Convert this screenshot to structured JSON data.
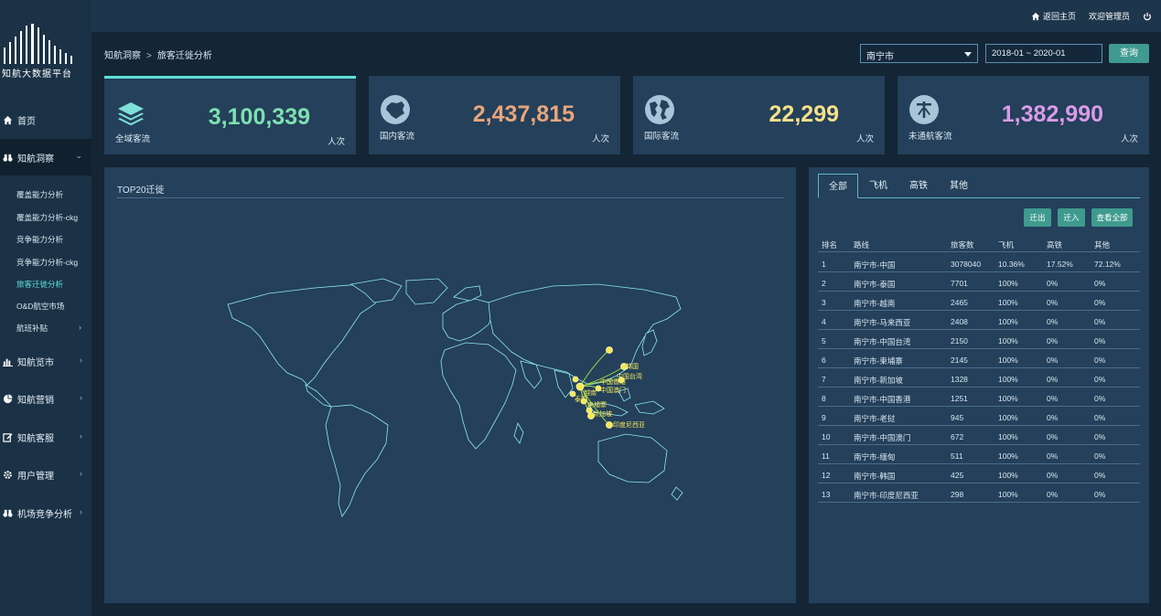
{
  "app": {
    "logo_text": "知航大数据平台"
  },
  "sidebar": {
    "items": [
      {
        "label": "首页",
        "icon": "home-icon"
      },
      {
        "label": "知航洞察",
        "icon": "binoculars-icon"
      },
      {
        "label": "知航览市",
        "icon": "bar-chart-icon"
      },
      {
        "label": "知航营销",
        "icon": "pie-chart-icon"
      },
      {
        "label": "知航客服",
        "icon": "edit-icon"
      },
      {
        "label": "用户管理",
        "icon": "gear-icon"
      },
      {
        "label": "机场竞争分析",
        "icon": "binoculars-icon"
      }
    ],
    "sub_items": [
      {
        "label": "覆盖能力分析"
      },
      {
        "label": "覆盖能力分析-ckg"
      },
      {
        "label": "竞争能力分析"
      },
      {
        "label": "竞争能力分析-ckg"
      },
      {
        "label": "旅客迁徙分析"
      },
      {
        "label": "O&D航空市场"
      },
      {
        "label": "航班补贴"
      }
    ]
  },
  "header": {
    "home_link": "返回主页",
    "welcome": "欢迎管理员",
    "power_icon": "power-icon"
  },
  "breadcrumb": {
    "parent": "知航洞察",
    "separator": ">",
    "current": "旅客迁徙分析"
  },
  "filters": {
    "city": "南宁市",
    "date_range": "2018-01 ~ 2020-01",
    "query_label": "查询"
  },
  "stats": [
    {
      "label": "全域客流",
      "value": "3,100,339",
      "unit": "人次",
      "color": "#7fe0b1",
      "icon": "layers-icon"
    },
    {
      "label": "国内客流",
      "value": "2,437,815",
      "unit": "人次",
      "color": "#e8a57c",
      "icon": "china-map-icon"
    },
    {
      "label": "国际客流",
      "value": "22,299",
      "unit": "人次",
      "color": "#f5e08a",
      "icon": "globe-icon"
    },
    {
      "label": "未通航客流",
      "value": "1,382,990",
      "unit": "人次",
      "color": "#d99be8",
      "icon": "no-route-icon"
    }
  ],
  "map": {
    "title": "TOP20迁徙",
    "labels": [
      "韩国",
      "中国台湾",
      "中国香港",
      "中国澳门",
      "泰国",
      "越南",
      "柬埔寨",
      "新加坡",
      "印度尼西亚"
    ]
  },
  "table_panel": {
    "tabs": [
      "全部",
      "飞机",
      "高铁",
      "其他"
    ],
    "buttons": {
      "out": "迁出",
      "in": "迁入",
      "all": "查看全部"
    },
    "headers": [
      "排名",
      "路线",
      "旅客数",
      "飞机",
      "高铁",
      "其他"
    ],
    "rows": [
      [
        "1",
        "南宁市-中国",
        "3078040",
        "10.36%",
        "17.52%",
        "72.12%"
      ],
      [
        "2",
        "南宁市-泰国",
        "7701",
        "100%",
        "0%",
        "0%"
      ],
      [
        "3",
        "南宁市-越南",
        "2465",
        "100%",
        "0%",
        "0%"
      ],
      [
        "4",
        "南宁市-马来西亚",
        "2408",
        "100%",
        "0%",
        "0%"
      ],
      [
        "5",
        "南宁市-中国台湾",
        "2150",
        "100%",
        "0%",
        "0%"
      ],
      [
        "6",
        "南宁市-柬埔寨",
        "2145",
        "100%",
        "0%",
        "0%"
      ],
      [
        "7",
        "南宁市-新加坡",
        "1328",
        "100%",
        "0%",
        "0%"
      ],
      [
        "8",
        "南宁市-中国香港",
        "1251",
        "100%",
        "0%",
        "0%"
      ],
      [
        "9",
        "南宁市-老挝",
        "945",
        "100%",
        "0%",
        "0%"
      ],
      [
        "10",
        "南宁市-中国澳门",
        "672",
        "100%",
        "0%",
        "0%"
      ],
      [
        "11",
        "南宁市-缅甸",
        "511",
        "100%",
        "0%",
        "0%"
      ],
      [
        "12",
        "南宁市-韩国",
        "425",
        "100%",
        "0%",
        "0%"
      ],
      [
        "13",
        "南宁市-印度尼西亚",
        "298",
        "100%",
        "0%",
        "0%"
      ]
    ]
  }
}
